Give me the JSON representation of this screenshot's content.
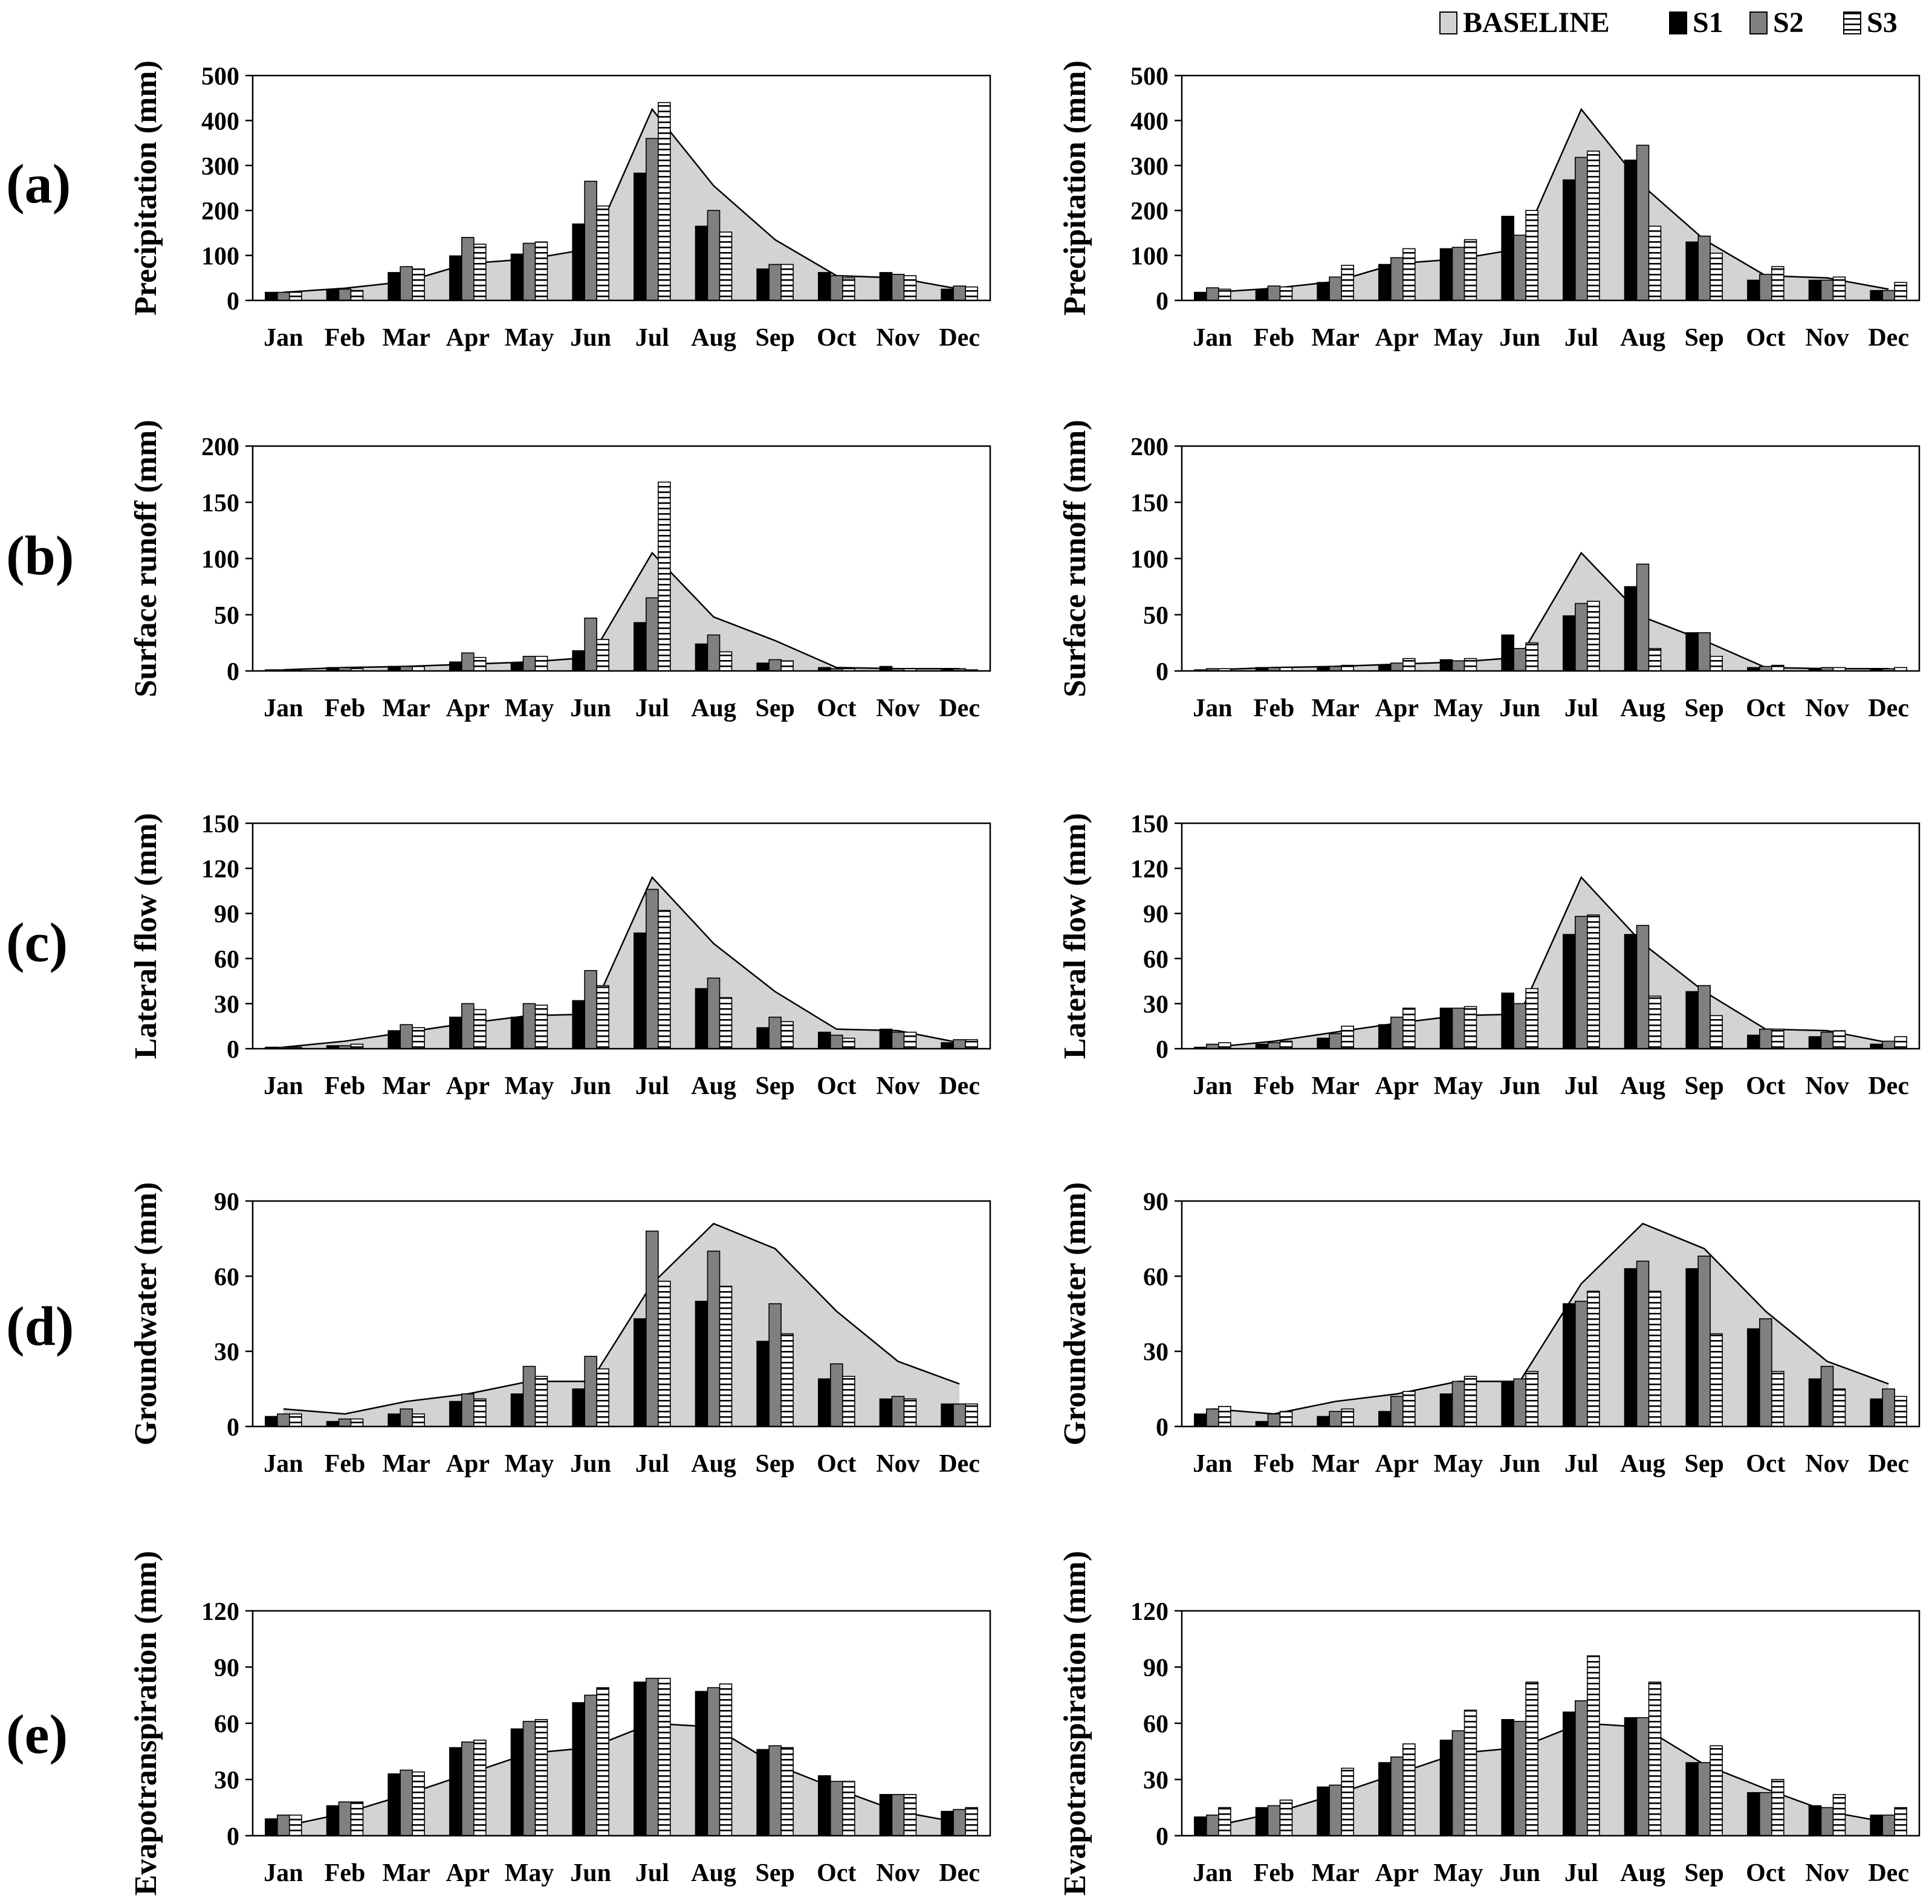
{
  "figure": {
    "months": [
      "Jan",
      "Feb",
      "Mar",
      "Apr",
      "May",
      "Jun",
      "Jul",
      "Aug",
      "Sep",
      "Oct",
      "Nov",
      "Dec"
    ],
    "panel_labels": [
      "(a)",
      "(b)",
      "(c)",
      "(d)",
      "(e)"
    ],
    "legend": [
      {
        "name": "BASELINE",
        "fill": "#d3d3d3",
        "pattern": "solid"
      },
      {
        "name": "S1",
        "fill": "#000000",
        "pattern": "solid"
      },
      {
        "name": "S2",
        "fill": "#808080",
        "pattern": "solid"
      },
      {
        "name": "S3",
        "fill": "#ffffff",
        "pattern": "hstripe"
      }
    ],
    "colors": {
      "baseline_area": "#d3d3d3",
      "s1": "#000000",
      "s2": "#808080",
      "s3_stripe": "#000000",
      "axis": "#000000"
    }
  },
  "chart_data": [
    {
      "type": "bar",
      "panel": "(a)",
      "column": "left",
      "ylabel": "Precipitation (mm)",
      "ylim": [
        0,
        500
      ],
      "yticks": [
        0,
        100,
        200,
        300,
        400,
        500
      ],
      "categories": [
        "Jan",
        "Feb",
        "Mar",
        "Apr",
        "May",
        "Jun",
        "Jul",
        "Aug",
        "Sep",
        "Oct",
        "Nov",
        "Dec"
      ],
      "baseline": [
        18,
        27,
        42,
        82,
        92,
        115,
        425,
        255,
        135,
        55,
        50,
        25
      ],
      "series": [
        {
          "name": "S1",
          "values": [
            18,
            24,
            62,
            99,
            103,
            170,
            283,
            165,
            70,
            62,
            62,
            25
          ]
        },
        {
          "name": "S2",
          "values": [
            18,
            25,
            75,
            140,
            127,
            265,
            360,
            200,
            80,
            55,
            58,
            32
          ]
        },
        {
          "name": "S3",
          "values": [
            18,
            22,
            70,
            125,
            130,
            210,
            440,
            152,
            80,
            50,
            55,
            30
          ]
        }
      ]
    },
    {
      "type": "bar",
      "panel": "(a)",
      "column": "right",
      "ylabel": "Precipitation (mm)",
      "ylim": [
        0,
        500
      ],
      "yticks": [
        0,
        100,
        200,
        300,
        400,
        500
      ],
      "categories": [
        "Jan",
        "Feb",
        "Mar",
        "Apr",
        "May",
        "Jun",
        "Jul",
        "Aug",
        "Sep",
        "Oct",
        "Nov",
        "Dec"
      ],
      "baseline": [
        18,
        27,
        42,
        82,
        92,
        115,
        425,
        255,
        135,
        55,
        50,
        25
      ],
      "series": [
        {
          "name": "S1",
          "values": [
            18,
            24,
            40,
            80,
            115,
            187,
            268,
            312,
            130,
            45,
            45,
            22
          ]
        },
        {
          "name": "S2",
          "values": [
            28,
            32,
            52,
            95,
            118,
            145,
            318,
            345,
            143,
            58,
            45,
            22
          ]
        },
        {
          "name": "S3",
          "values": [
            25,
            30,
            78,
            115,
            135,
            200,
            332,
            165,
            105,
            75,
            52,
            40
          ]
        }
      ]
    },
    {
      "type": "bar",
      "panel": "(b)",
      "column": "left",
      "ylabel": "Surface runoff (mm)",
      "ylim": [
        0,
        200
      ],
      "yticks": [
        0,
        50,
        100,
        150,
        200
      ],
      "categories": [
        "Jan",
        "Feb",
        "Mar",
        "Apr",
        "May",
        "Jun",
        "Jul",
        "Aug",
        "Sep",
        "Oct",
        "Nov",
        "Dec"
      ],
      "baseline": [
        1,
        3,
        4,
        6,
        8,
        12,
        105,
        48,
        27,
        3,
        2,
        2
      ],
      "series": [
        {
          "name": "S1",
          "values": [
            1,
            3,
            4,
            8,
            7,
            18,
            43,
            24,
            7,
            3,
            4,
            2
          ]
        },
        {
          "name": "S2",
          "values": [
            1,
            3,
            4,
            16,
            13,
            47,
            65,
            32,
            10,
            2,
            2,
            2
          ]
        },
        {
          "name": "S3",
          "values": [
            1,
            2,
            4,
            12,
            13,
            28,
            168,
            17,
            9,
            2,
            2,
            1
          ]
        }
      ]
    },
    {
      "type": "bar",
      "panel": "(b)",
      "column": "right",
      "ylabel": "Surface runoff (mm)",
      "ylim": [
        0,
        200
      ],
      "yticks": [
        0,
        50,
        100,
        150,
        200
      ],
      "categories": [
        "Jan",
        "Feb",
        "Mar",
        "Apr",
        "May",
        "Jun",
        "Jul",
        "Aug",
        "Sep",
        "Oct",
        "Nov",
        "Dec"
      ],
      "baseline": [
        1,
        3,
        4,
        6,
        8,
        12,
        105,
        48,
        27,
        3,
        2,
        2
      ],
      "series": [
        {
          "name": "S1",
          "values": [
            1,
            3,
            3,
            5,
            10,
            32,
            49,
            75,
            34,
            3,
            2,
            1
          ]
        },
        {
          "name": "S2",
          "values": [
            2,
            3,
            4,
            7,
            9,
            20,
            60,
            95,
            34,
            4,
            3,
            2
          ]
        },
        {
          "name": "S3",
          "values": [
            2,
            3,
            5,
            11,
            11,
            25,
            62,
            20,
            13,
            5,
            3,
            3
          ]
        }
      ]
    },
    {
      "type": "bar",
      "panel": "(c)",
      "column": "left",
      "ylabel": "Lateral flow (mm)",
      "ylim": [
        0,
        150
      ],
      "yticks": [
        0,
        30,
        60,
        90,
        120,
        150
      ],
      "categories": [
        "Jan",
        "Feb",
        "Mar",
        "Apr",
        "May",
        "Jun",
        "Jul",
        "Aug",
        "Sep",
        "Oct",
        "Nov",
        "Dec"
      ],
      "baseline": [
        1,
        5,
        11,
        17,
        22,
        23,
        114,
        70,
        38,
        13,
        12,
        4
      ],
      "series": [
        {
          "name": "S1",
          "values": [
            1,
            2,
            12,
            21,
            21,
            32,
            77,
            40,
            14,
            11,
            13,
            4
          ]
        },
        {
          "name": "S2",
          "values": [
            1,
            2,
            16,
            30,
            30,
            52,
            106,
            47,
            21,
            9,
            11,
            6
          ]
        },
        {
          "name": "S3",
          "values": [
            1,
            3,
            14,
            26,
            29,
            42,
            92,
            34,
            18,
            7,
            11,
            6
          ]
        }
      ]
    },
    {
      "type": "bar",
      "panel": "(c)",
      "column": "right",
      "ylabel": "Lateral flow (mm)",
      "ylim": [
        0,
        150
      ],
      "yticks": [
        0,
        30,
        60,
        90,
        120,
        150
      ],
      "categories": [
        "Jan",
        "Feb",
        "Mar",
        "Apr",
        "May",
        "Jun",
        "Jul",
        "Aug",
        "Sep",
        "Oct",
        "Nov",
        "Dec"
      ],
      "baseline": [
        1,
        5,
        11,
        17,
        22,
        23,
        114,
        70,
        38,
        13,
        12,
        4
      ],
      "series": [
        {
          "name": "S1",
          "values": [
            1,
            3,
            7,
            16,
            27,
            37,
            76,
            76,
            38,
            9,
            8,
            3
          ]
        },
        {
          "name": "S2",
          "values": [
            3,
            4,
            10,
            21,
            27,
            30,
            88,
            82,
            42,
            13,
            11,
            5
          ]
        },
        {
          "name": "S3",
          "values": [
            4,
            5,
            15,
            27,
            28,
            40,
            89,
            35,
            22,
            13,
            12,
            8
          ]
        }
      ]
    },
    {
      "type": "bar",
      "panel": "(d)",
      "column": "left",
      "ylabel": "Groundwater (mm)",
      "ylim": [
        0,
        90
      ],
      "yticks": [
        0,
        30,
        60,
        90
      ],
      "categories": [
        "Jan",
        "Feb",
        "Mar",
        "Apr",
        "May",
        "Jun",
        "Jul",
        "Aug",
        "Sep",
        "Oct",
        "Nov",
        "Dec"
      ],
      "baseline": [
        7,
        5,
        10,
        13,
        18,
        18,
        57,
        81,
        71,
        46,
        26,
        17
      ],
      "series": [
        {
          "name": "S1",
          "values": [
            4,
            2,
            5,
            10,
            13,
            15,
            43,
            50,
            34,
            19,
            11,
            9
          ]
        },
        {
          "name": "S2",
          "values": [
            5,
            3,
            7,
            13,
            24,
            28,
            78,
            70,
            49,
            25,
            12,
            9
          ]
        },
        {
          "name": "S3",
          "values": [
            5,
            3,
            5,
            11,
            20,
            23,
            58,
            56,
            37,
            20,
            11,
            9
          ]
        }
      ]
    },
    {
      "type": "bar",
      "panel": "(d)",
      "column": "right",
      "ylabel": "Groundwater (mm)",
      "ylim": [
        0,
        90
      ],
      "yticks": [
        0,
        30,
        60,
        90
      ],
      "categories": [
        "Jan",
        "Feb",
        "Mar",
        "Apr",
        "May",
        "Jun",
        "Jul",
        "Aug",
        "Sep",
        "Oct",
        "Nov",
        "Dec"
      ],
      "baseline": [
        7,
        5,
        10,
        13,
        18,
        18,
        57,
        81,
        71,
        46,
        26,
        17
      ],
      "series": [
        {
          "name": "S1",
          "values": [
            5,
            2,
            4,
            6,
            13,
            18,
            49,
            63,
            63,
            39,
            19,
            11
          ]
        },
        {
          "name": "S2",
          "values": [
            7,
            5,
            6,
            12,
            18,
            19,
            50,
            66,
            68,
            43,
            24,
            15
          ]
        },
        {
          "name": "S3",
          "values": [
            8,
            6,
            7,
            14,
            20,
            22,
            54,
            54,
            37,
            22,
            15,
            12
          ]
        }
      ]
    },
    {
      "type": "bar",
      "panel": "(e)",
      "column": "left",
      "ylabel": "Evapotranspiration (mm)",
      "ylim": [
        0,
        120
      ],
      "yticks": [
        0,
        30,
        60,
        90,
        120
      ],
      "categories": [
        "Jan",
        "Feb",
        "Mar",
        "Apr",
        "May",
        "Jun",
        "Jul",
        "Aug",
        "Sep",
        "Oct",
        "Nov",
        "Dec"
      ],
      "baseline": [
        5,
        12,
        22,
        33,
        44,
        47,
        60,
        58,
        38,
        25,
        13,
        7
      ],
      "series": [
        {
          "name": "S1",
          "values": [
            9,
            16,
            33,
            47,
            57,
            71,
            82,
            77,
            46,
            32,
            22,
            13
          ]
        },
        {
          "name": "S2",
          "values": [
            11,
            18,
            35,
            50,
            61,
            75,
            84,
            79,
            48,
            29,
            22,
            14
          ]
        },
        {
          "name": "S3",
          "values": [
            11,
            18,
            34,
            51,
            62,
            79,
            84,
            81,
            47,
            29,
            22,
            15
          ]
        }
      ]
    },
    {
      "type": "bar",
      "panel": "(e)",
      "column": "right",
      "ylabel": "Evapotranspiration (mm)",
      "ylim": [
        0,
        120
      ],
      "yticks": [
        0,
        30,
        60,
        90,
        120
      ],
      "categories": [
        "Jan",
        "Feb",
        "Mar",
        "Apr",
        "May",
        "Jun",
        "Jul",
        "Aug",
        "Sep",
        "Oct",
        "Nov",
        "Dec"
      ],
      "baseline": [
        5,
        12,
        22,
        33,
        44,
        47,
        60,
        58,
        38,
        25,
        13,
        7
      ],
      "series": [
        {
          "name": "S1",
          "values": [
            10,
            15,
            26,
            39,
            51,
            62,
            66,
            63,
            39,
            23,
            16,
            11
          ]
        },
        {
          "name": "S2",
          "values": [
            11,
            16,
            27,
            42,
            56,
            61,
            72,
            63,
            39,
            23,
            15,
            11
          ]
        },
        {
          "name": "S3",
          "values": [
            15,
            19,
            36,
            49,
            67,
            82,
            96,
            82,
            48,
            30,
            22,
            15
          ]
        }
      ]
    }
  ]
}
